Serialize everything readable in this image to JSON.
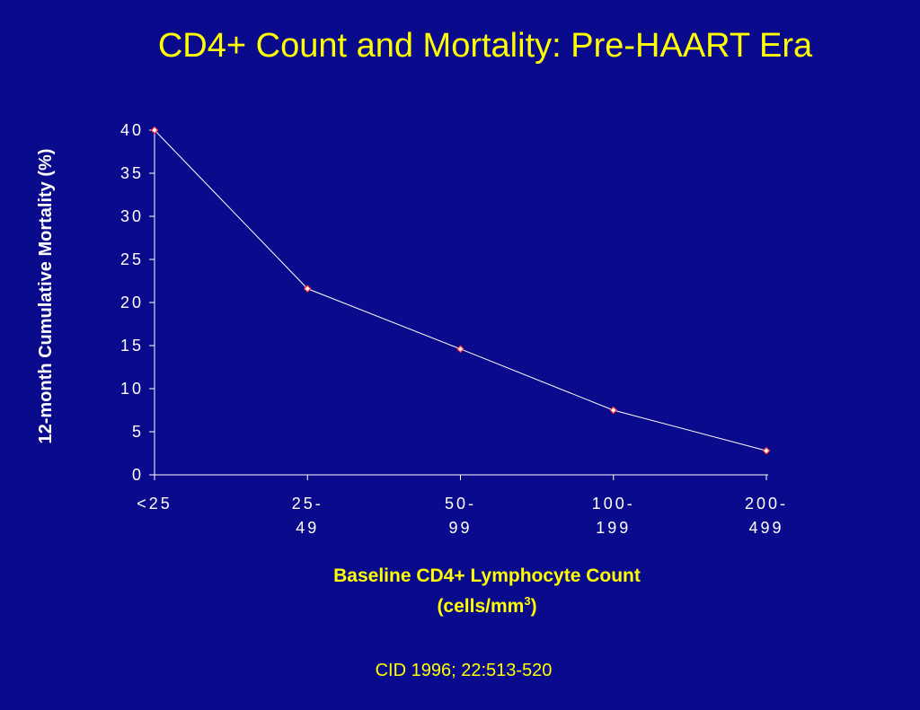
{
  "slide": {
    "background": "#0a0a8c"
  },
  "title": "CD4+ Count and Mortality:  Pre-HAART Era",
  "source": "CID 1996; 22:513-520",
  "chart_data": {
    "type": "line",
    "title": "CD4+ Count and Mortality:  Pre-HAART Era",
    "ylabel": "12-month Cumulative Mortality (%)",
    "xlabel_line1": "Baseline CD4+ Lymphocyte Count",
    "xlabel_line2_pre": "(cells/mm",
    "xlabel_sup": "3",
    "xlabel_line2_post": ")",
    "categories": [
      [
        "<25"
      ],
      [
        "25-",
        "49"
      ],
      [
        "50-",
        "99"
      ],
      [
        "100-",
        "199"
      ],
      [
        "200-",
        "499"
      ]
    ],
    "series": [
      {
        "values": [
          40,
          21.6,
          14.6,
          7.5,
          2.8
        ],
        "color": "#ffffff",
        "marker_color": "#ff3333"
      }
    ],
    "ylim": [
      0,
      40
    ],
    "yticks": [
      "0",
      "5",
      "10",
      "15",
      "20",
      "25",
      "30",
      "35",
      "40"
    ],
    "grid": false,
    "legend": "none",
    "axis_color": "#ffffff"
  }
}
